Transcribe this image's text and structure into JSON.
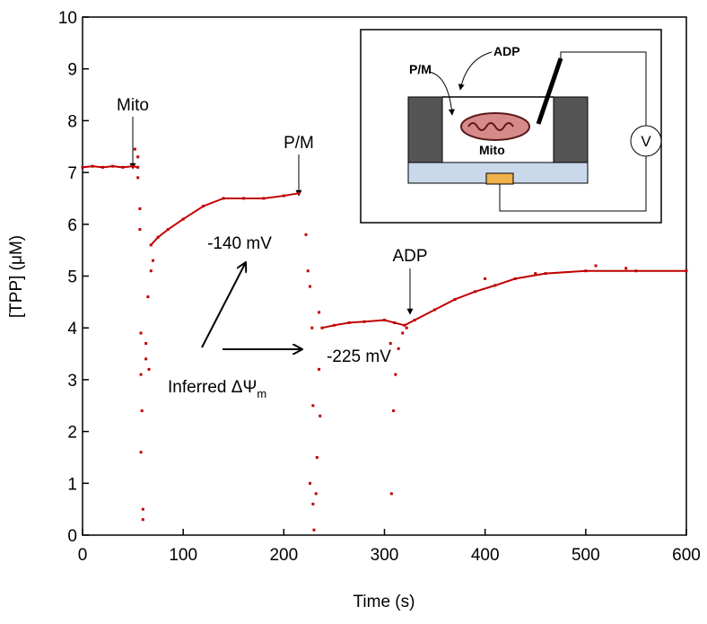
{
  "chart_data": {
    "type": "scatter",
    "xlabel": "Time (s)",
    "ylabel": "[TPP] (μM)",
    "xlim": [
      0,
      600
    ],
    "xticks": [
      0,
      100,
      200,
      300,
      400,
      500,
      600
    ],
    "ylim": [
      0,
      10
    ],
    "yticks": [
      0,
      1,
      2,
      3,
      4,
      5,
      6,
      7,
      8,
      9,
      10
    ],
    "series": [
      {
        "color": "#c00000",
        "connected": true,
        "x": [
          0,
          10,
          20,
          30,
          40,
          50,
          55,
          null,
          68,
          75,
          85,
          100,
          120,
          140,
          160,
          180,
          200,
          215,
          null,
          238,
          250,
          265,
          280,
          300,
          310,
          320,
          330,
          350,
          370,
          390,
          410,
          430,
          460,
          500,
          550,
          600
        ],
        "values": [
          7.1,
          7.12,
          7.1,
          7.12,
          7.1,
          7.12,
          7.1,
          null,
          5.6,
          5.75,
          5.9,
          6.1,
          6.35,
          6.5,
          6.5,
          6.5,
          6.55,
          6.6,
          null,
          4.0,
          4.05,
          4.1,
          4.12,
          4.15,
          4.1,
          4.05,
          4.15,
          4.35,
          4.55,
          4.7,
          4.82,
          4.95,
          5.05,
          5.1,
          5.1,
          5.1
        ]
      },
      {
        "color": "#c00000",
        "connected": false,
        "x": [
          52,
          55,
          55,
          57,
          57,
          58,
          58,
          58,
          59,
          60,
          60,
          63,
          63,
          65,
          66,
          68,
          70,
          222,
          224,
          226,
          228,
          229,
          226,
          229,
          230,
          232,
          233,
          235,
          235,
          236,
          306,
          307,
          309,
          311,
          314,
          318,
          322,
          400,
          450,
          510,
          540
        ],
        "values": [
          7.45,
          7.3,
          6.9,
          6.3,
          5.9,
          3.9,
          3.1,
          1.6,
          2.4,
          0.3,
          0.5,
          3.7,
          3.4,
          4.6,
          3.2,
          5.1,
          5.3,
          5.8,
          5.1,
          4.8,
          4.0,
          2.5,
          1.0,
          0.6,
          0.1,
          0.8,
          1.5,
          4.3,
          3.2,
          2.3,
          3.7,
          0.8,
          2.4,
          3.1,
          3.6,
          3.9,
          4.0,
          4.95,
          5.05,
          5.2,
          5.15
        ]
      }
    ],
    "annotations": [
      "Mito",
      "P/M",
      "-140 mV",
      "-225 mV",
      "ADP"
    ],
    "inferred": {
      "text": "Inferred ΔΨ",
      "subscript": "m"
    },
    "inset_labels": [
      "P/M",
      "ADP",
      "Mito",
      "V"
    ]
  }
}
